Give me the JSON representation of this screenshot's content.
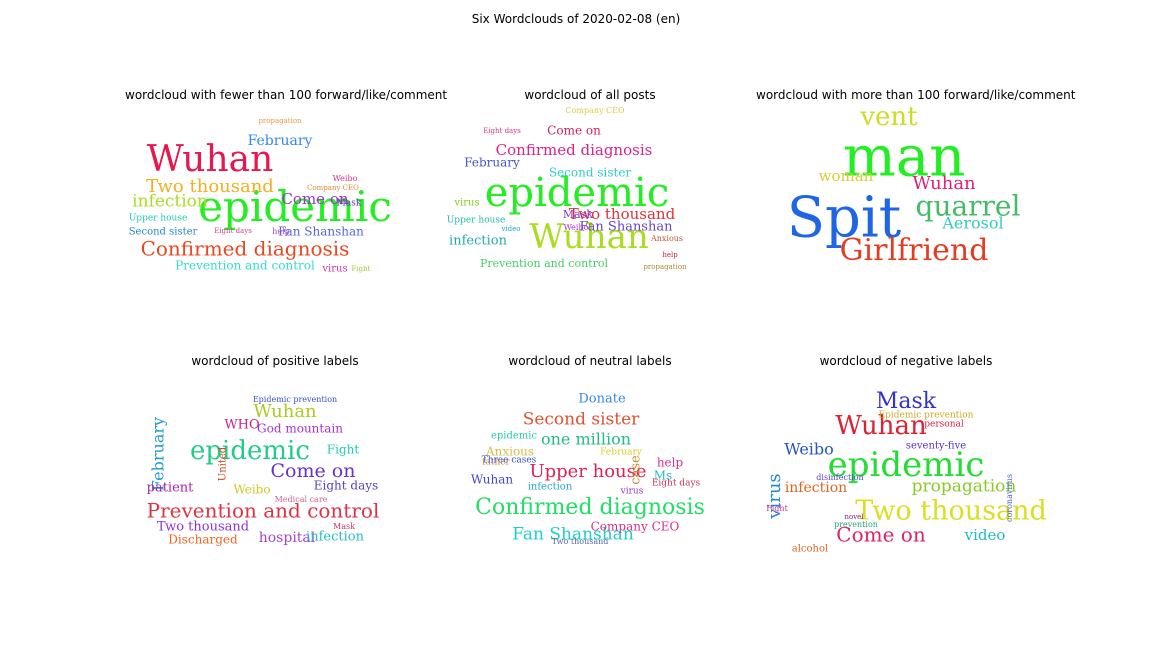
{
  "figure": {
    "suptitle": "Six Wordclouds of 2020-02-08 (en)"
  },
  "chart_data": [
    {
      "type": "wordcloud",
      "title": "wordcloud with fewer than 100 forward/like/comment",
      "words": [
        {
          "text": "epidemic",
          "color": "#22ee22"
        },
        {
          "text": "Wuhan",
          "color": "#e8174d"
        },
        {
          "text": "Two thousand",
          "color": "#f0b020"
        },
        {
          "text": "Confirmed diagnosis",
          "color": "#e84820"
        },
        {
          "text": "infection",
          "color": "#aadd22"
        },
        {
          "text": "Come on",
          "color": "#9933cc"
        },
        {
          "text": "February",
          "color": "#3388ee"
        },
        {
          "text": "Fan Shanshan",
          "color": "#5566dd"
        },
        {
          "text": "Prevention and control",
          "color": "#33ddcc"
        },
        {
          "text": "Upper house",
          "color": "#22ccaa"
        },
        {
          "text": "Second sister",
          "color": "#2288cc"
        },
        {
          "text": "Mask",
          "color": "#6633bb"
        },
        {
          "text": "virus",
          "color": "#cc33aa"
        },
        {
          "text": "Weibo",
          "color": "#cc3388"
        },
        {
          "text": "help",
          "color": "#aa44cc"
        },
        {
          "text": "Company CEO",
          "color": "#dd8833"
        },
        {
          "text": "Fight",
          "color": "#99cc33"
        },
        {
          "text": "Eight days",
          "color": "#cc4488"
        },
        {
          "text": "propagation",
          "color": "#ee9944"
        }
      ]
    },
    {
      "type": "wordcloud",
      "title": "wordcloud of all posts",
      "words": [
        {
          "text": "epidemic",
          "color": "#22ee22"
        },
        {
          "text": "Wuhan",
          "color": "#aadd22"
        },
        {
          "text": "Confirmed diagnosis",
          "color": "#dd2288"
        },
        {
          "text": "Come on",
          "color": "#cc2255"
        },
        {
          "text": "Second sister",
          "color": "#33cccc"
        },
        {
          "text": "Two thousand",
          "color": "#dd3333"
        },
        {
          "text": "Fan Shanshan",
          "color": "#6644cc"
        },
        {
          "text": "February",
          "color": "#4455cc"
        },
        {
          "text": "infection",
          "color": "#22aaaa"
        },
        {
          "text": "Prevention and control",
          "color": "#44cc66"
        },
        {
          "text": "virus",
          "color": "#88cc22"
        },
        {
          "text": "Mask",
          "color": "#8833cc"
        },
        {
          "text": "Upper house",
          "color": "#22bbaa"
        },
        {
          "text": "Weibo",
          "color": "#aa33cc"
        },
        {
          "text": "Company CEO",
          "color": "#ddcc44"
        },
        {
          "text": "Anxious",
          "color": "#cc5533"
        },
        {
          "text": "Eight days",
          "color": "#dd3388"
        },
        {
          "text": "video",
          "color": "#22aacc"
        },
        {
          "text": "help",
          "color": "#cc2244"
        },
        {
          "text": "propagation",
          "color": "#aa8833"
        }
      ]
    },
    {
      "type": "wordcloud",
      "title": "wordcloud with more than 100 forward/like/comment",
      "words": [
        {
          "text": "man",
          "color": "#22ee22"
        },
        {
          "text": "Spit",
          "color": "#1e66e6"
        },
        {
          "text": "Girlfriend",
          "color": "#e63c1e"
        },
        {
          "text": "quarrel",
          "color": "#44bb66"
        },
        {
          "text": "vent",
          "color": "#ccdd22"
        },
        {
          "text": "Wuhan",
          "color": "#dd2277"
        },
        {
          "text": "Aerosol",
          "color": "#33ccbb"
        },
        {
          "text": "woman",
          "color": "#ddcc33"
        }
      ]
    },
    {
      "type": "wordcloud",
      "title": "wordcloud of positive labels",
      "words": [
        {
          "text": "epidemic",
          "color": "#22cc88"
        },
        {
          "text": "Prevention and control",
          "color": "#dd3344"
        },
        {
          "text": "Come on",
          "color": "#6633cc"
        },
        {
          "text": "Wuhan",
          "color": "#aacc22"
        },
        {
          "text": "February",
          "color": "#2299cc"
        },
        {
          "text": "God mountain",
          "color": "#aa33cc"
        },
        {
          "text": "WHO",
          "color": "#cc2288"
        },
        {
          "text": "Fight",
          "color": "#22ccaa"
        },
        {
          "text": "Eight days",
          "color": "#5544bb"
        },
        {
          "text": "Weibo",
          "color": "#cccc22"
        },
        {
          "text": "patient",
          "color": "#aa22aa"
        },
        {
          "text": "Two thousand",
          "color": "#8833dd"
        },
        {
          "text": "Discharged",
          "color": "#ee6622"
        },
        {
          "text": "hospital",
          "color": "#aa44cc"
        },
        {
          "text": "infection",
          "color": "#22bbcc"
        },
        {
          "text": "Mask",
          "color": "#cc3366"
        },
        {
          "text": "United",
          "color": "#cc4422"
        },
        {
          "text": "Epidemic prevention",
          "color": "#3355cc"
        },
        {
          "text": "Medical care",
          "color": "#cc6699"
        }
      ]
    },
    {
      "type": "wordcloud",
      "title": "wordcloud of neutral labels",
      "words": [
        {
          "text": "Confirmed diagnosis",
          "color": "#22dd66"
        },
        {
          "text": "Upper house",
          "color": "#dd2255"
        },
        {
          "text": "Fan Shanshan",
          "color": "#22cccc"
        },
        {
          "text": "Second sister",
          "color": "#e05030"
        },
        {
          "text": "one million",
          "color": "#22bb88"
        },
        {
          "text": "Donate",
          "color": "#3388dd"
        },
        {
          "text": "Anxious",
          "color": "#ddbb44"
        },
        {
          "text": "help",
          "color": "#dd3388"
        },
        {
          "text": "Company CEO",
          "color": "#cc3388"
        },
        {
          "text": "Wuhan",
          "color": "#4444cc"
        },
        {
          "text": "infection",
          "color": "#22aacc"
        },
        {
          "text": "Ms",
          "color": "#22bbcc"
        },
        {
          "text": "epidemic",
          "color": "#22ccaa"
        },
        {
          "text": "father",
          "color": "#dd8833"
        },
        {
          "text": "Eight days",
          "color": "#cc3355"
        },
        {
          "text": "Three cases",
          "color": "#3355cc"
        },
        {
          "text": "case",
          "color": "#cc8833"
        },
        {
          "text": "February",
          "color": "#ddcc22"
        },
        {
          "text": "virus",
          "color": "#9933cc"
        },
        {
          "text": "Two thousand",
          "color": "#5566aa"
        }
      ]
    },
    {
      "type": "wordcloud",
      "title": "wordcloud of negative labels",
      "words": [
        {
          "text": "epidemic",
          "color": "#22dd33"
        },
        {
          "text": "Two thousand",
          "color": "#dddd22"
        },
        {
          "text": "Come on",
          "color": "#dd2266"
        },
        {
          "text": "Wuhan",
          "color": "#dd2233"
        },
        {
          "text": "Mask",
          "color": "#3333cc"
        },
        {
          "text": "propagation",
          "color": "#88cc22"
        },
        {
          "text": "Weibo",
          "color": "#2255cc"
        },
        {
          "text": "infection",
          "color": "#dd6622"
        },
        {
          "text": "virus",
          "color": "#2288dd"
        },
        {
          "text": "video",
          "color": "#22bbcc"
        },
        {
          "text": "seventy-five",
          "color": "#5533cc"
        },
        {
          "text": "Epidemic prevention",
          "color": "#ccaa22"
        },
        {
          "text": "alcohol",
          "color": "#dd6622"
        },
        {
          "text": "disinfection",
          "color": "#5544cc"
        },
        {
          "text": "personal",
          "color": "#dd2244"
        },
        {
          "text": "coronavirus",
          "color": "#4466cc"
        },
        {
          "text": "prevention",
          "color": "#22aa77"
        },
        {
          "text": "Fight",
          "color": "#cc3388"
        },
        {
          "text": "novel",
          "color": "#882288"
        }
      ]
    }
  ]
}
